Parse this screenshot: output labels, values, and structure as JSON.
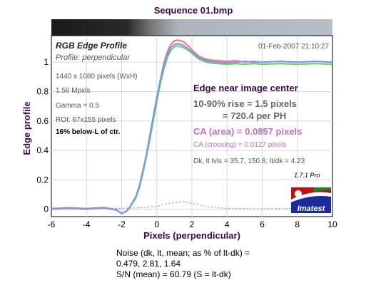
{
  "chart_data": {
    "type": "line",
    "title": "Sequence 01.bmp",
    "xlabel": "Pixels (perpendicular)",
    "ylabel": "Edge profile",
    "xlim": [
      -6,
      10
    ],
    "ylim": [
      -0.05,
      1.18
    ],
    "x_ticks": [
      "-6",
      "-4",
      "-2",
      "0",
      "2",
      "4",
      "6",
      "8",
      "10"
    ],
    "y_ticks": [
      "0",
      "0.2",
      "0.4",
      "0.6",
      "0.8",
      "1"
    ],
    "grid": true,
    "series": [
      {
        "color": "#ff7070",
        "x": [
          -6,
          -5,
          -4,
          -3,
          -2.3,
          -2,
          -1.7,
          -1.5,
          -1.2,
          -1,
          -0.8,
          -0.6,
          -0.4,
          -0.2,
          0,
          0.2,
          0.4,
          0.6,
          0.8,
          1,
          1.2,
          1.5,
          1.8,
          2.1,
          2.4,
          2.8,
          3,
          3.5,
          4,
          4.5,
          5,
          5.5,
          6,
          7,
          8,
          9,
          10
        ],
        "y": [
          0,
          0.005,
          0,
          0.01,
          -0.005,
          -0.03,
          -0.01,
          0.02,
          0.08,
          0.15,
          0.25,
          0.36,
          0.49,
          0.62,
          0.75,
          0.88,
          0.99,
          1.07,
          1.12,
          1.145,
          1.15,
          1.14,
          1.11,
          1.07,
          1.04,
          1.02,
          1.015,
          1.01,
          1.005,
          1.01,
          1.0,
          1.005,
          1.0,
          1.005,
          1.0,
          1.005,
          1.0
        ]
      },
      {
        "color": "#60d060",
        "x": [
          -6,
          -5,
          -4,
          -3,
          -2.3,
          -2,
          -1.7,
          -1.5,
          -1.2,
          -1,
          -0.8,
          -0.6,
          -0.4,
          -0.2,
          0,
          0.2,
          0.4,
          0.6,
          0.8,
          1,
          1.2,
          1.5,
          1.8,
          2.1,
          2.4,
          2.8,
          3,
          3.5,
          4,
          4.5,
          5,
          5.5,
          6,
          7,
          8,
          9,
          10
        ],
        "y": [
          0,
          0.005,
          0.002,
          0.008,
          -0.006,
          -0.03,
          -0.012,
          0.018,
          0.075,
          0.14,
          0.24,
          0.35,
          0.47,
          0.6,
          0.73,
          0.85,
          0.95,
          1.03,
          1.08,
          1.105,
          1.11,
          1.1,
          1.08,
          1.05,
          1.02,
          1.0,
          0.995,
          0.99,
          0.985,
          0.99,
          0.985,
          0.99,
          0.985,
          0.99,
          0.985,
          0.99,
          0.985
        ]
      },
      {
        "color": "#8090ff",
        "x": [
          -6,
          -5,
          -4,
          -3,
          -2.3,
          -2,
          -1.7,
          -1.5,
          -1.2,
          -1,
          -0.8,
          -0.6,
          -0.4,
          -0.2,
          0,
          0.2,
          0.4,
          0.6,
          0.8,
          1,
          1.2,
          1.5,
          1.8,
          2.1,
          2.4,
          2.8,
          3,
          3.5,
          4,
          4.5,
          5,
          5.5,
          6,
          7,
          8,
          9,
          10
        ],
        "y": [
          0.005,
          0.01,
          0.005,
          0.012,
          -0.002,
          -0.028,
          -0.01,
          0.022,
          0.085,
          0.155,
          0.26,
          0.37,
          0.5,
          0.63,
          0.76,
          0.88,
          0.98,
          1.05,
          1.1,
          1.12,
          1.125,
          1.115,
          1.09,
          1.06,
          1.03,
          1.01,
          1.005,
          1.0,
          0.995,
          1.0,
          1.005,
          1.0,
          1.0,
          1.005,
          1.0,
          1.005,
          1.0
        ]
      },
      {
        "color": "#d070d0",
        "dashed": true,
        "x": [
          -6,
          -4,
          -2,
          -1,
          0,
          0.5,
          1,
          1.5,
          2,
          3,
          4,
          6,
          8,
          10
        ],
        "y": [
          0,
          0.005,
          0.005,
          0.01,
          0.02,
          0.035,
          0.045,
          0.05,
          0.04,
          0.015,
          0.005,
          0.003,
          0.005,
          0.003
        ]
      }
    ],
    "annotations": {
      "profile_title": "RGB Edge Profile",
      "profile_subtitle": "Profile: perpendicular",
      "date": "01-Feb-2007 21:10:27",
      "pixels": "1440 x 1080 pixels (WxH)",
      "mpxls": "1.56 Mpxls",
      "gamma": "Gamma = 0.5",
      "roi": "ROI: 67x155 pixels",
      "position": "16% below-L of ctr.",
      "edge_location": "Edge near image center",
      "rise": "10-90% rise = 1.5 pixels",
      "per_ph": "= 720.4 per PH",
      "ca_area": "CA (area) = 0.0857 pixels",
      "ca_crossing": "CA (crossing) = 0.0127 pixels",
      "levels": "Dk, lt lvls = 35.7, 150.8;  lt/dk = 4.23",
      "version": "1.7.1  Pro",
      "brand": "Imatest"
    }
  },
  "footer": {
    "line1": "Noise (dk, lt, mean; as % of lt-dk) =",
    "line2": "0.479,  2.81,  1.64",
    "line3": "S/N (mean) = 60.79  (S = lt-dk)"
  }
}
